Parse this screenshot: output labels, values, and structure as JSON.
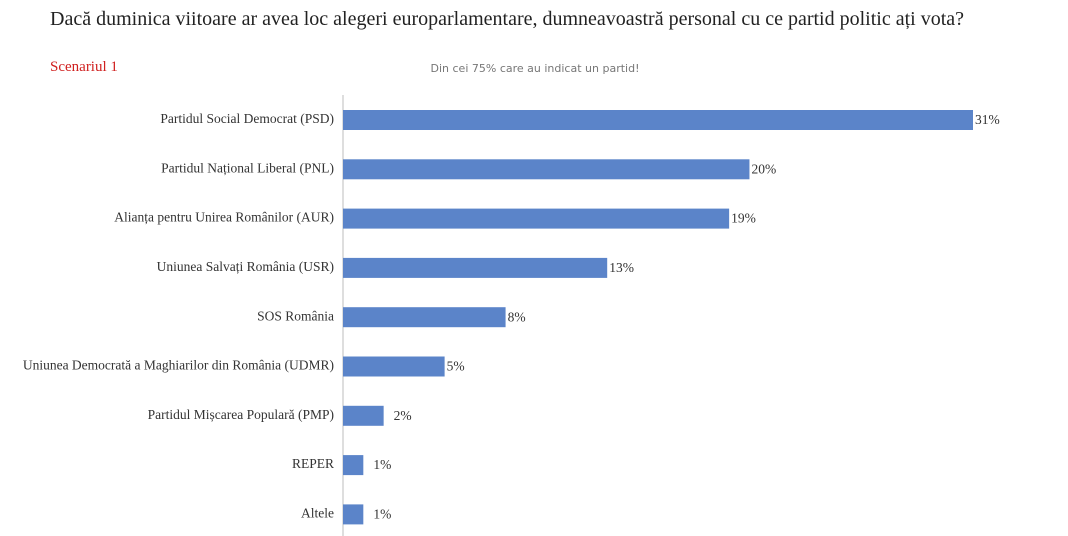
{
  "chart_data": {
    "type": "hbar",
    "title": "Dacă duminica viitoare ar avea loc alegeri europarlamentare, dumneavoastră personal cu ce partid politic ați vota?",
    "subtitle": "Scenariul 1",
    "note": "Din cei 75% care au indicat un partid!",
    "categories": [
      "Partidul Social Democrat (PSD)",
      "Partidul Național Liberal (PNL)",
      "Alianța pentru Unirea Românilor (AUR)",
      "Uniunea Salvați România (USR)",
      "SOS România",
      "Uniunea Democrată a Maghiarilor din România (UDMR)",
      "Partidul Mișcarea Populară (PMP)",
      "REPER",
      "Altele"
    ],
    "values": [
      31,
      20,
      19,
      13,
      8,
      5,
      2,
      1,
      1
    ],
    "value_labels": [
      "31%",
      "20%",
      "19%",
      "13%",
      "8%",
      "5%",
      "2%",
      "1%",
      "1%"
    ],
    "color": "#5b84c9"
  }
}
